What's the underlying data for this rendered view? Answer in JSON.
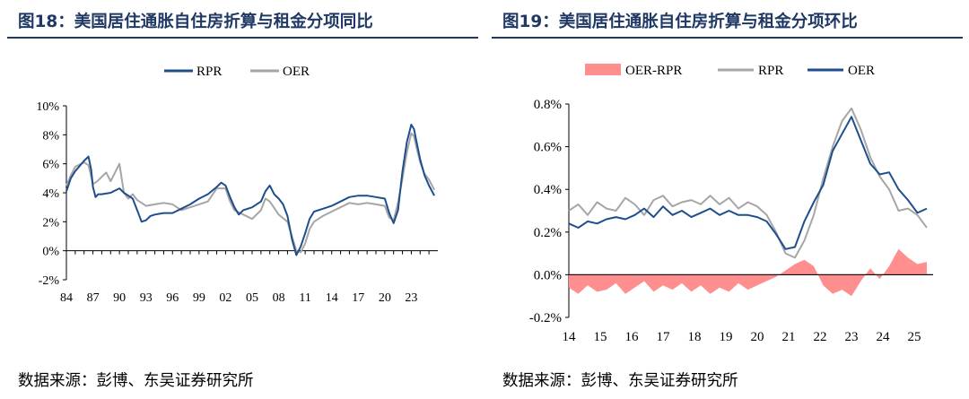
{
  "chart_data": [
    {
      "type": "line",
      "title": "图18：美国居住通胀自住房折算与租金分项同比",
      "source": "数据来源：彭博、东吴证券研究所",
      "x_tick_labels": [
        "84",
        "87",
        "90",
        "93",
        "96",
        "99",
        "02",
        "05",
        "08",
        "11",
        "14",
        "17",
        "20",
        "23"
      ],
      "y_tick_labels": [
        "10%",
        "8%",
        "6%",
        "4%",
        "2%",
        "0%",
        "-2%"
      ],
      "ylim": [
        -2,
        10
      ],
      "xlim": [
        1984,
        2026
      ],
      "legend_position": "top-center",
      "series": [
        {
          "name": "RPR",
          "color": "#1f4e8c",
          "x": [
            1984,
            1984.5,
            1985,
            1986,
            1986.5,
            1986.8,
            1987,
            1987.3,
            1987.6,
            1988,
            1989,
            1990,
            1990.5,
            1991,
            1991.5,
            1992,
            1992.5,
            1993,
            1993.5,
            1994,
            1995,
            1996,
            1997,
            1998,
            1999,
            2000,
            2001,
            2001.5,
            2002,
            2002.5,
            2003,
            2003.5,
            2004,
            2005,
            2006,
            2006.5,
            2007,
            2007.5,
            2008,
            2008.5,
            2009,
            2009.5,
            2010,
            2010.5,
            2011,
            2011.5,
            2012,
            2013,
            2014,
            2015,
            2016,
            2017,
            2018,
            2019,
            2020,
            2020.5,
            2021,
            2021.5,
            2022,
            2022.5,
            2023,
            2023.3,
            2023.6,
            2024,
            2024.5,
            2025,
            2025.6
          ],
          "y": [
            4.1,
            5.0,
            5.5,
            6.2,
            6.5,
            5.6,
            4.4,
            3.7,
            3.9,
            3.9,
            4.0,
            4.3,
            4.0,
            3.8,
            3.6,
            2.8,
            2.0,
            2.1,
            2.4,
            2.5,
            2.6,
            2.6,
            2.9,
            3.2,
            3.6,
            3.9,
            4.4,
            4.7,
            4.5,
            3.7,
            3.0,
            2.5,
            2.8,
            3.0,
            3.4,
            4.1,
            4.5,
            3.9,
            3.6,
            3.2,
            2.4,
            0.8,
            -0.3,
            0.3,
            1.2,
            2.2,
            2.7,
            2.9,
            3.1,
            3.4,
            3.7,
            3.8,
            3.8,
            3.7,
            3.6,
            2.6,
            1.9,
            2.8,
            5.5,
            7.5,
            8.7,
            8.4,
            7.5,
            6.3,
            5.2,
            4.5,
            3.8
          ]
        },
        {
          "name": "OER",
          "color": "#a6a6a6",
          "x": [
            1984,
            1984.5,
            1985,
            1986,
            1986.5,
            1987,
            1987.5,
            1988,
            1988.5,
            1989,
            1990,
            1990.5,
            1991,
            1991.5,
            1992,
            1993,
            1994,
            1995,
            1996,
            1997,
            1998,
            1999,
            2000,
            2001,
            2002,
            2002.5,
            2003,
            2004,
            2005,
            2006,
            2006.5,
            2007,
            2008,
            2009,
            2009.5,
            2010,
            2010.5,
            2011,
            2011.5,
            2012,
            2013,
            2014,
            2015,
            2016,
            2017,
            2018,
            2019,
            2020,
            2020.5,
            2021,
            2021.5,
            2022,
            2022.5,
            2023,
            2023.3,
            2023.6,
            2024,
            2024.5,
            2025,
            2025.6
          ],
          "y": [
            4.5,
            5.2,
            5.8,
            6.1,
            5.9,
            4.6,
            4.8,
            5.1,
            5.4,
            4.8,
            6.0,
            4.0,
            3.6,
            3.9,
            3.5,
            3.1,
            3.2,
            3.3,
            3.2,
            2.8,
            3.0,
            3.2,
            3.4,
            4.3,
            4.3,
            3.4,
            2.8,
            2.5,
            2.2,
            2.8,
            3.6,
            3.4,
            2.5,
            2.0,
            1.0,
            0.0,
            -0.1,
            0.5,
            1.5,
            2.0,
            2.4,
            2.7,
            3.0,
            3.3,
            3.2,
            3.3,
            3.2,
            3.1,
            2.3,
            2.1,
            3.3,
            5.0,
            6.8,
            8.1,
            7.9,
            7.1,
            6.1,
            5.3,
            4.9,
            4.2
          ]
        }
      ]
    },
    {
      "type": "line",
      "title": "图19：美国居住通胀自住房折算与租金分项环比",
      "source": "数据来源：彭博、东吴证券研究所",
      "x_tick_labels": [
        "14",
        "15",
        "16",
        "17",
        "18",
        "19",
        "20",
        "21",
        "22",
        "23",
        "24",
        "25"
      ],
      "y_tick_labels": [
        "0.8%",
        "0.6%",
        "0.4%",
        "0.2%",
        "0.0%",
        "-0.2%"
      ],
      "ylim": [
        -0.2,
        0.8
      ],
      "xlim": [
        2014,
        2025.6
      ],
      "legend_position": "top-center",
      "series": [
        {
          "name": "OER-RPR",
          "type": "area",
          "color": "#ff8f8f",
          "x": [
            2014,
            2014.3,
            2014.6,
            2014.9,
            2015.2,
            2015.5,
            2015.8,
            2016.1,
            2016.4,
            2016.7,
            2017.0,
            2017.3,
            2017.6,
            2017.9,
            2018.2,
            2018.5,
            2018.8,
            2019.1,
            2019.4,
            2019.7,
            2020.0,
            2020.3,
            2020.6,
            2020.9,
            2021.2,
            2021.5,
            2021.8,
            2022.1,
            2022.4,
            2022.7,
            2023.0,
            2023.3,
            2023.6,
            2023.9,
            2024.2,
            2024.5,
            2024.8,
            2025.1,
            2025.4
          ],
          "y": [
            -0.06,
            -0.09,
            -0.05,
            -0.08,
            -0.07,
            -0.04,
            -0.09,
            -0.06,
            -0.03,
            -0.08,
            -0.05,
            -0.07,
            -0.04,
            -0.08,
            -0.05,
            -0.09,
            -0.06,
            -0.08,
            -0.04,
            -0.07,
            -0.05,
            -0.03,
            -0.01,
            0.02,
            0.05,
            0.07,
            0.04,
            -0.05,
            -0.09,
            -0.07,
            -0.1,
            -0.03,
            0.03,
            -0.02,
            0.04,
            0.12,
            0.08,
            0.05,
            0.06
          ]
        },
        {
          "name": "RPR",
          "color": "#a6a6a6",
          "x": [
            2014,
            2014.3,
            2014.6,
            2014.9,
            2015.2,
            2015.5,
            2015.8,
            2016.1,
            2016.4,
            2016.7,
            2017.0,
            2017.3,
            2017.6,
            2017.9,
            2018.2,
            2018.5,
            2018.8,
            2019.1,
            2019.4,
            2019.7,
            2020.0,
            2020.3,
            2020.6,
            2020.9,
            2021.2,
            2021.5,
            2021.8,
            2022.1,
            2022.4,
            2022.7,
            2023.0,
            2023.3,
            2023.6,
            2023.9,
            2024.2,
            2024.5,
            2024.8,
            2025.1,
            2025.4
          ],
          "y": [
            0.3,
            0.33,
            0.28,
            0.34,
            0.31,
            0.3,
            0.36,
            0.33,
            0.28,
            0.35,
            0.37,
            0.32,
            0.34,
            0.35,
            0.33,
            0.37,
            0.33,
            0.36,
            0.31,
            0.34,
            0.32,
            0.28,
            0.2,
            0.1,
            0.08,
            0.16,
            0.28,
            0.45,
            0.6,
            0.72,
            0.78,
            0.68,
            0.55,
            0.46,
            0.4,
            0.3,
            0.31,
            0.28,
            0.22
          ]
        },
        {
          "name": "OER",
          "color": "#1f4e8c",
          "x": [
            2014,
            2014.3,
            2014.6,
            2014.9,
            2015.2,
            2015.5,
            2015.8,
            2016.1,
            2016.4,
            2016.7,
            2017.0,
            2017.3,
            2017.6,
            2017.9,
            2018.2,
            2018.5,
            2018.8,
            2019.1,
            2019.4,
            2019.7,
            2020.0,
            2020.3,
            2020.6,
            2020.9,
            2021.2,
            2021.5,
            2021.8,
            2022.1,
            2022.4,
            2022.7,
            2023.0,
            2023.3,
            2023.6,
            2023.9,
            2024.2,
            2024.5,
            2024.8,
            2025.1,
            2025.4
          ],
          "y": [
            0.24,
            0.22,
            0.25,
            0.24,
            0.26,
            0.27,
            0.26,
            0.28,
            0.31,
            0.27,
            0.32,
            0.28,
            0.3,
            0.27,
            0.29,
            0.31,
            0.28,
            0.3,
            0.28,
            0.28,
            0.27,
            0.25,
            0.19,
            0.12,
            0.13,
            0.25,
            0.34,
            0.42,
            0.58,
            0.66,
            0.74,
            0.63,
            0.52,
            0.47,
            0.48,
            0.4,
            0.35,
            0.29,
            0.31
          ]
        }
      ]
    }
  ]
}
